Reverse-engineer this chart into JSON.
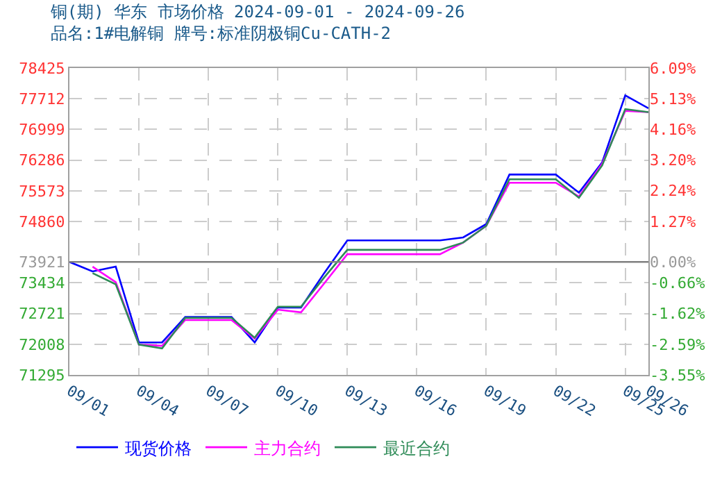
{
  "chart_data": {
    "type": "line",
    "title": "铜(期) 华东 市场价格 2024-09-01 - 2024-09-26",
    "subtitle": "品名:1#电解铜 牌号:标准阴极铜Cu-CATH-2",
    "x": [
      "--09-01",
      "--09-02",
      "--09-03",
      "--09-04",
      "--09-05",
      "--09-06",
      "--09-07",
      "--09-08",
      "--09-09",
      "--09-10",
      "--09-11",
      "--09-12",
      "--09-13",
      "--09-14",
      "--09-15",
      "--09-16",
      "--09-17",
      "--09-18",
      "--09-19",
      "--09-20",
      "--09-21",
      "--09-22",
      "--09-23",
      "--09-24",
      "--09-25",
      "--09-26"
    ],
    "series": [
      {
        "name": "现货价格",
        "color": "#0000ff",
        "values": [
          73921,
          73700,
          73810,
          72050,
          72050,
          72640,
          72640,
          72640,
          72050,
          72860,
          72860,
          73660,
          74420,
          74420,
          74420,
          74420,
          74420,
          74490,
          74800,
          75950,
          75950,
          75950,
          75530,
          76230,
          77790,
          77490
        ]
      },
      {
        "name": "主力合约",
        "color": "#ff00ff",
        "values": [
          null,
          73810,
          73450,
          72000,
          71970,
          72570,
          72570,
          72570,
          72140,
          72810,
          72750,
          73420,
          74100,
          74100,
          74100,
          74100,
          74100,
          74370,
          74760,
          75760,
          75760,
          75760,
          75440,
          76200,
          77430,
          77400
        ]
      },
      {
        "name": "最近合约",
        "color": "#2e8b57",
        "values": [
          null,
          73660,
          73400,
          72000,
          71910,
          72620,
          72620,
          72620,
          72160,
          72880,
          72880,
          73560,
          74200,
          74200,
          74200,
          74200,
          74200,
          74370,
          74760,
          75840,
          75840,
          75840,
          75410,
          76160,
          77470,
          77400
        ]
      }
    ],
    "xlim": [
      "--09-01",
      "--09-26"
    ],
    "xticks": [
      {
        "value": "--09-01",
        "label": "09/01"
      },
      {
        "value": "--09-04",
        "label": "09/04"
      },
      {
        "value": "--09-07",
        "label": "09/07"
      },
      {
        "value": "--09-10",
        "label": "09/10"
      },
      {
        "value": "--09-13",
        "label": "09/13"
      },
      {
        "value": "--09-16",
        "label": "09/16"
      },
      {
        "value": "--09-19",
        "label": "09/19"
      },
      {
        "value": "--09-22",
        "label": "09/22"
      },
      {
        "value": "--09-25",
        "label": "09/25"
      },
      {
        "value": "--09-26",
        "label": "09/26"
      }
    ],
    "ylim": [
      71295,
      78425
    ],
    "yticks": [
      71295,
      72008,
      72721,
      73434,
      73921,
      74860,
      75573,
      76286,
      76999,
      77712,
      78425
    ],
    "y2lim": [
      -3.55,
      6.09
    ],
    "y2ticks": [
      {
        "value": -3.55,
        "label": "-3.55%"
      },
      {
        "value": -2.59,
        "label": "-2.59%"
      },
      {
        "value": -1.62,
        "label": "-1.62%"
      },
      {
        "value": -0.66,
        "label": "-0.66%"
      },
      {
        "value": 0,
        "label": "0.00%"
      },
      {
        "value": 1.27,
        "label": "1.27%"
      },
      {
        "value": 2.24,
        "label": "2.24%"
      },
      {
        "value": 3.2,
        "label": "3.20%"
      },
      {
        "value": 4.16,
        "label": "4.16%"
      },
      {
        "value": 5.13,
        "label": "5.13%"
      },
      {
        "value": 6.09,
        "label": "6.09%"
      }
    ],
    "ref_lines": [
      {
        "axis": "y",
        "value": 73921,
        "color": "#808080",
        "line_style": "solid"
      }
    ],
    "grid": true,
    "legend": "bottom",
    "line_style": "solid",
    "marker": "none"
  }
}
